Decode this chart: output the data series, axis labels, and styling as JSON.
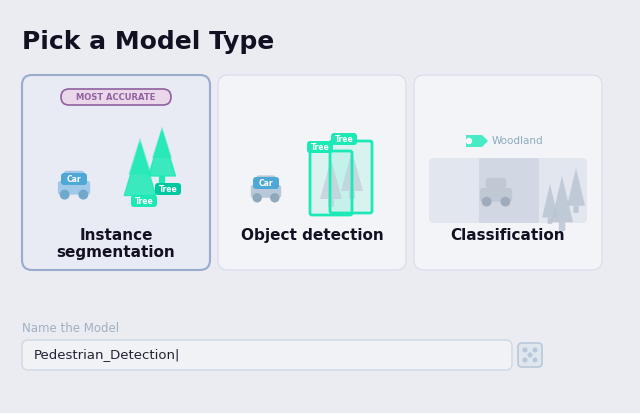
{
  "title": "Pick a Model Type",
  "bg_color": "#eaecf2",
  "title_color": "#111122",
  "card_bg_selected": "#e8eaf4",
  "card_bg_normal": "#f2f4f8",
  "card_border_selected": "#9aabcc",
  "card_border_normal": "#d8dce8",
  "card_titles": [
    "Instance\nsegmentation",
    "Object detection",
    "Classification"
  ],
  "card_label": "MOST ACCURATE",
  "card_label_bg": "#ead8ea",
  "card_label_text": "#9060a0",
  "teal": "#1de9b6",
  "teal_dark": "#00c9a0",
  "blue_label_bg": "#4da8d8",
  "blue_label_bg2": "#38a0d0",
  "light_gray": "#c8d0de",
  "car_blue": "#a0c8e8",
  "car_blue_dark": "#70a8cc",
  "text_input_label": "Name the Model",
  "text_input_value": "Pedestrian_Detection|",
  "text_input_border": "#d0d8e4",
  "dice_color": "#b8c8d8"
}
